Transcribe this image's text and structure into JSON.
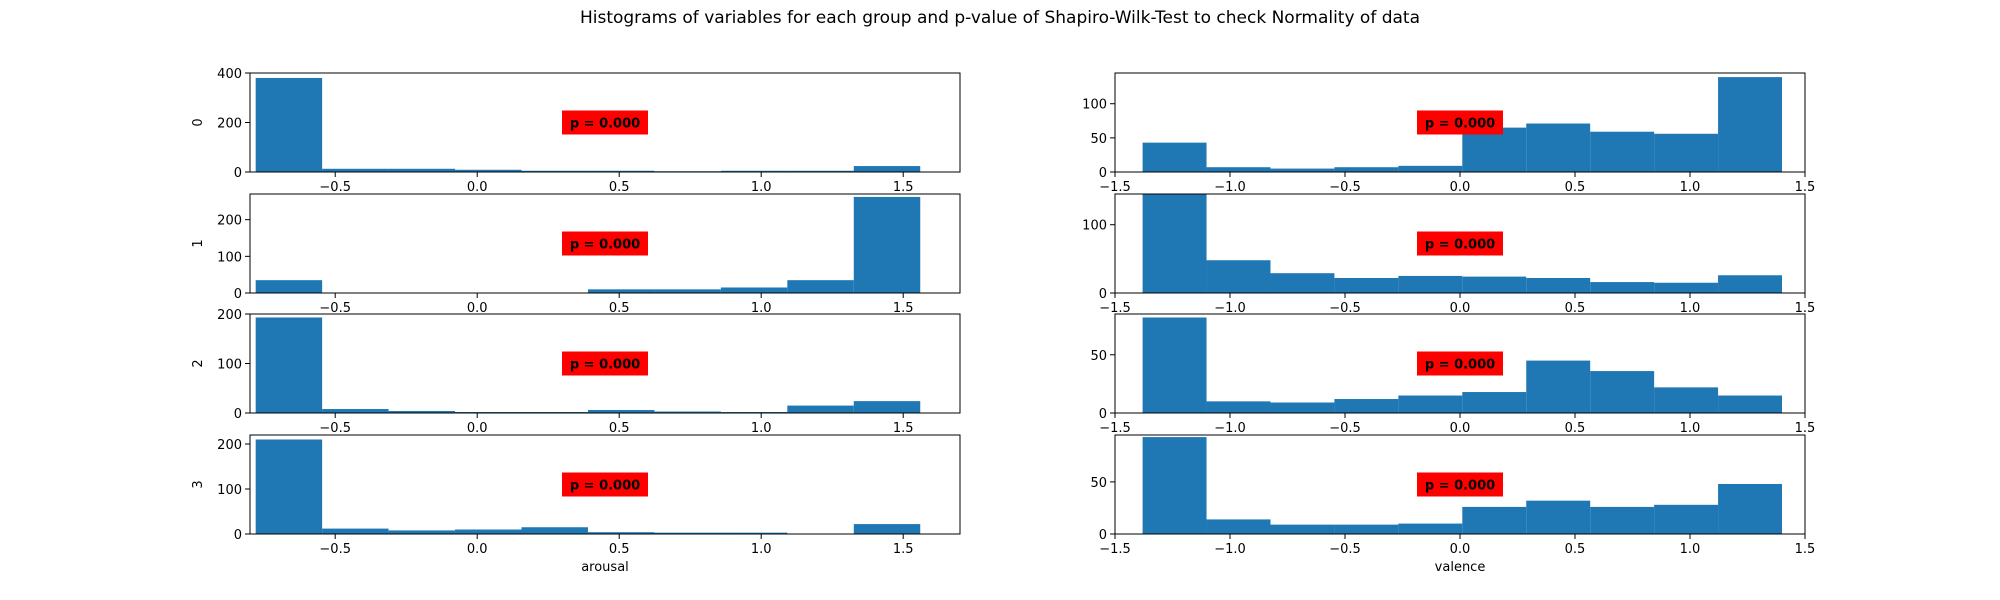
{
  "suptitle": "Histograms of variables for each group and p-value of Shapiro-Wilk-Test to check Normality of data",
  "style": {
    "bar_color": "#1f77b4",
    "annotation_bg": "#ff0000"
  },
  "chart_data": [
    {
      "type": "bar",
      "group": "0",
      "variable": "arousal",
      "ylabel": "0",
      "xlabel": "",
      "annotation": "p = 0.000",
      "xlim": [
        -0.8,
        1.7
      ],
      "ylim": [
        0,
        400
      ],
      "yticks": [
        0,
        200,
        400
      ],
      "xticks": [
        -0.5,
        0.0,
        0.5,
        1.0,
        1.5
      ],
      "xticklabels": [
        "−0.5",
        "0.0",
        "0.5",
        "1.0",
        "1.5"
      ],
      "bin_edges": [
        -0.78,
        -0.546,
        -0.312,
        -0.078,
        0.156,
        0.39,
        0.624,
        0.858,
        1.092,
        1.326,
        1.56
      ],
      "values": [
        380,
        13,
        13,
        9,
        5,
        5,
        3,
        5,
        5,
        24
      ]
    },
    {
      "type": "bar",
      "group": "0",
      "variable": "valence",
      "ylabel": "",
      "xlabel": "",
      "annotation": "p = 0.000",
      "xlim": [
        -1.5,
        1.5
      ],
      "ylim": [
        0,
        145
      ],
      "yticks": [
        0,
        50,
        100
      ],
      "xticks": [
        -1.5,
        -1.0,
        -0.5,
        0.0,
        0.5,
        1.0,
        1.5
      ],
      "xticklabels": [
        "−1.5",
        "−1.0",
        "−0.5",
        "0.0",
        "0.5",
        "1.0",
        "1.5"
      ],
      "bin_edges": [
        -1.38,
        -1.102,
        -0.824,
        -0.546,
        -0.268,
        0.01,
        0.288,
        0.566,
        0.844,
        1.122,
        1.4
      ],
      "values": [
        43,
        7,
        5,
        7,
        9,
        65,
        71,
        59,
        56,
        139
      ]
    },
    {
      "type": "bar",
      "group": "1",
      "variable": "arousal",
      "ylabel": "1",
      "xlabel": "",
      "annotation": "p = 0.000",
      "xlim": [
        -0.8,
        1.7
      ],
      "ylim": [
        0,
        270
      ],
      "yticks": [
        0,
        100,
        200
      ],
      "xticks": [
        -0.5,
        0.0,
        0.5,
        1.0,
        1.5
      ],
      "xticklabels": [
        "−0.5",
        "0.0",
        "0.5",
        "1.0",
        "1.5"
      ],
      "bin_edges": [
        -0.78,
        -0.546,
        -0.312,
        -0.078,
        0.156,
        0.39,
        0.624,
        0.858,
        1.092,
        1.326,
        1.56
      ],
      "values": [
        35,
        0,
        0,
        0,
        0,
        10,
        10,
        15,
        35,
        262
      ]
    },
    {
      "type": "bar",
      "group": "1",
      "variable": "valence",
      "ylabel": "",
      "xlabel": "",
      "annotation": "p = 0.000",
      "xlim": [
        -1.5,
        1.5
      ],
      "ylim": [
        0,
        145
      ],
      "yticks": [
        0,
        100
      ],
      "xticks": [
        -1.5,
        -1.0,
        -0.5,
        0.0,
        0.5,
        1.0,
        1.5
      ],
      "xticklabels": [
        "−1.5",
        "−1.0",
        "−0.5",
        "0.0",
        "0.5",
        "1.0",
        "1.5"
      ],
      "bin_edges": [
        -1.38,
        -1.102,
        -0.824,
        -0.546,
        -0.268,
        0.01,
        0.288,
        0.566,
        0.844,
        1.122,
        1.4
      ],
      "values": [
        145,
        48,
        29,
        22,
        25,
        24,
        22,
        16,
        15,
        26
      ]
    },
    {
      "type": "bar",
      "group": "2",
      "variable": "arousal",
      "ylabel": "2",
      "xlabel": "",
      "annotation": "p = 0.000",
      "xlim": [
        -0.8,
        1.7
      ],
      "ylim": [
        0,
        200
      ],
      "yticks": [
        0,
        100,
        200
      ],
      "xticks": [
        -0.5,
        0.0,
        0.5,
        1.0,
        1.5
      ],
      "xticklabels": [
        "−0.5",
        "0.0",
        "0.5",
        "1.0",
        "1.5"
      ],
      "bin_edges": [
        -0.78,
        -0.546,
        -0.312,
        -0.078,
        0.156,
        0.39,
        0.624,
        0.858,
        1.092,
        1.326,
        1.56
      ],
      "values": [
        193,
        8,
        4,
        2,
        2,
        6,
        3,
        2,
        15,
        24
      ]
    },
    {
      "type": "bar",
      "group": "2",
      "variable": "valence",
      "ylabel": "",
      "xlabel": "",
      "annotation": "p = 0.000",
      "xlim": [
        -1.5,
        1.5
      ],
      "ylim": [
        0,
        85
      ],
      "yticks": [
        0,
        50
      ],
      "xticks": [
        -1.5,
        -1.0,
        -0.5,
        0.0,
        0.5,
        1.0,
        1.5
      ],
      "xticklabels": [
        "−1.5",
        "−1.0",
        "−0.5",
        "0.0",
        "0.5",
        "1.0",
        "1.5"
      ],
      "bin_edges": [
        -1.38,
        -1.102,
        -0.824,
        -0.546,
        -0.268,
        0.01,
        0.288,
        0.566,
        0.844,
        1.122,
        1.4
      ],
      "values": [
        82,
        10,
        9,
        12,
        15,
        18,
        45,
        36,
        22,
        15
      ]
    },
    {
      "type": "bar",
      "group": "3",
      "variable": "arousal",
      "ylabel": "3",
      "xlabel": "arousal",
      "annotation": "p = 0.000",
      "xlim": [
        -0.8,
        1.7
      ],
      "ylim": [
        0,
        220
      ],
      "yticks": [
        0,
        100,
        200
      ],
      "xticks": [
        -0.5,
        0.0,
        0.5,
        1.0,
        1.5
      ],
      "xticklabels": [
        "−0.5",
        "0.0",
        "0.5",
        "1.0",
        "1.5"
      ],
      "bin_edges": [
        -0.78,
        -0.546,
        -0.312,
        -0.078,
        0.156,
        0.39,
        0.624,
        0.858,
        1.092,
        1.326,
        1.56
      ],
      "values": [
        210,
        12,
        8,
        10,
        15,
        4,
        3,
        3,
        1,
        22
      ]
    },
    {
      "type": "bar",
      "group": "3",
      "variable": "valence",
      "ylabel": "",
      "xlabel": "valence",
      "annotation": "p = 0.000",
      "xlim": [
        -1.5,
        1.5
      ],
      "ylim": [
        0,
        95
      ],
      "yticks": [
        0,
        50
      ],
      "xticks": [
        -1.5,
        -1.0,
        -0.5,
        0.0,
        0.5,
        1.0,
        1.5
      ],
      "xticklabels": [
        "−1.5",
        "−1.0",
        "−0.5",
        "0.0",
        "0.5",
        "1.0",
        "1.5"
      ],
      "bin_edges": [
        -1.38,
        -1.102,
        -0.824,
        -0.546,
        -0.268,
        0.01,
        0.288,
        0.566,
        0.844,
        1.122,
        1.4
      ],
      "values": [
        93,
        14,
        9,
        9,
        10,
        26,
        32,
        26,
        28,
        48
      ]
    }
  ]
}
